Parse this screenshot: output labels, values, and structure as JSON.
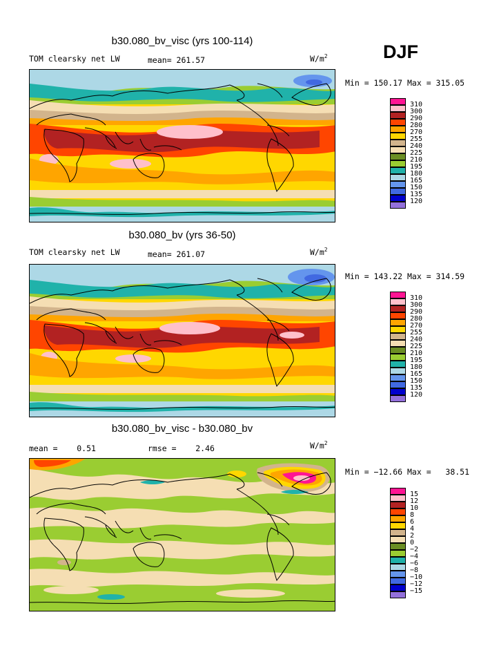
{
  "season": "DJF",
  "palette": [
    "#9370db",
    "#0000cd",
    "#4169e1",
    "#6495ed",
    "#add8e6",
    "#20b2aa",
    "#9acd32",
    "#6b8e23",
    "#f5deb3",
    "#d2b48c",
    "#ffd700",
    "#ffa500",
    "#ff4500",
    "#b22222",
    "#ffc0cb",
    "#ff1493"
  ],
  "panels": [
    {
      "id": "visc",
      "title": "b30.080_bv_visc (yrs 100-114)",
      "left_label": "TOM clearsky net LW",
      "mid_label": "mean= 261.57",
      "units_base": "W/m",
      "units_exp": "2",
      "minmax": "Min = 150.17 Max = 315.05",
      "legend_labels": [
        "310",
        "300",
        "290",
        "280",
        "270",
        "255",
        "240",
        "225",
        "210",
        "195",
        "180",
        "165",
        "150",
        "135",
        "120"
      ]
    },
    {
      "id": "bv",
      "title": "b30.080_bv (yrs 36-50)",
      "left_label": "TOM clearsky net LW",
      "mid_label": "mean= 261.07",
      "units_base": "W/m",
      "units_exp": "2",
      "minmax": "Min = 143.22 Max = 314.59",
      "legend_labels": [
        "310",
        "300",
        "290",
        "280",
        "270",
        "255",
        "240",
        "225",
        "210",
        "195",
        "180",
        "165",
        "150",
        "135",
        "120"
      ]
    },
    {
      "id": "diff",
      "title": "b30.080_bv_visc - b30.080_bv",
      "left_label": "mean =    0.51",
      "mid_label": "rmse =    2.46",
      "units_base": "W/m",
      "units_exp": "2",
      "minmax": "Min = −12.66 Max =   38.51",
      "legend_labels": [
        "15",
        "12",
        "10",
        "8",
        "6",
        "4",
        "2",
        "0",
        "−2",
        "−4",
        "−6",
        "−8",
        "−10",
        "−12",
        "−15"
      ]
    }
  ]
}
